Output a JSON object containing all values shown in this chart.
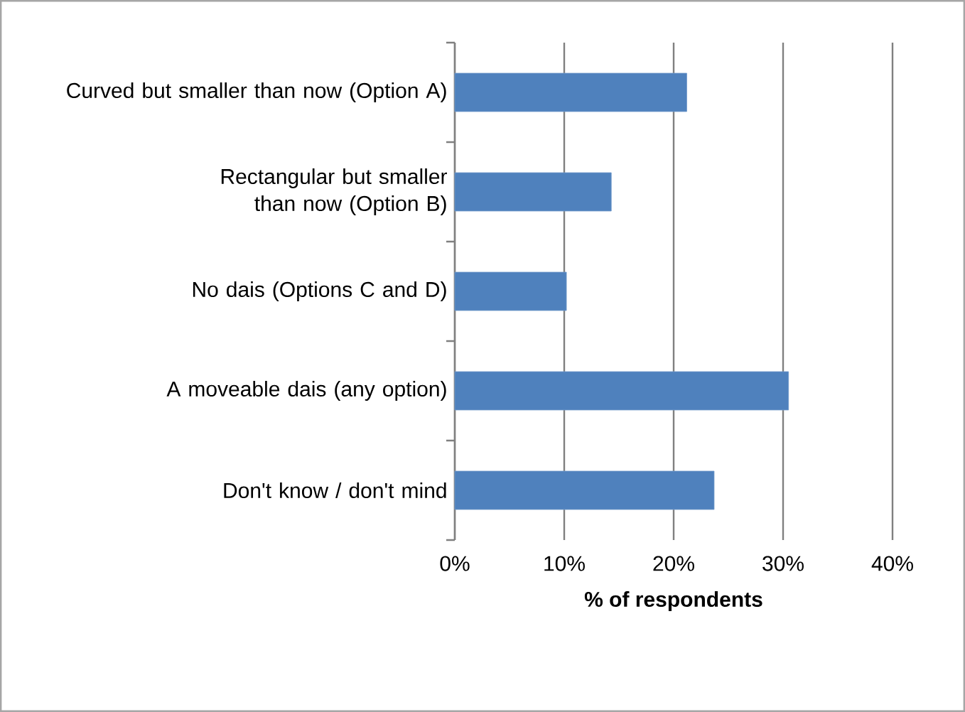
{
  "chart_data": {
    "type": "bar",
    "orientation": "horizontal",
    "categories": [
      "Curved but smaller than now (Option A)",
      "Rectangular but smaller than now (Option B)",
      "No dais (Options C and D)",
      "A moveable dais (any option)",
      "Don't know / don't mind"
    ],
    "values": [
      21.2,
      14.3,
      10.2,
      30.5,
      23.7
    ],
    "color": "#4f81bd",
    "xlabel": "% of respondents",
    "xlim": [
      0,
      40
    ],
    "xticks": [
      {
        "value": 0,
        "label": "0%"
      },
      {
        "value": 10,
        "label": "10%"
      },
      {
        "value": 20,
        "label": "20%"
      },
      {
        "value": 30,
        "label": "30%"
      },
      {
        "value": 40,
        "label": "40%"
      }
    ],
    "grid": "x"
  }
}
